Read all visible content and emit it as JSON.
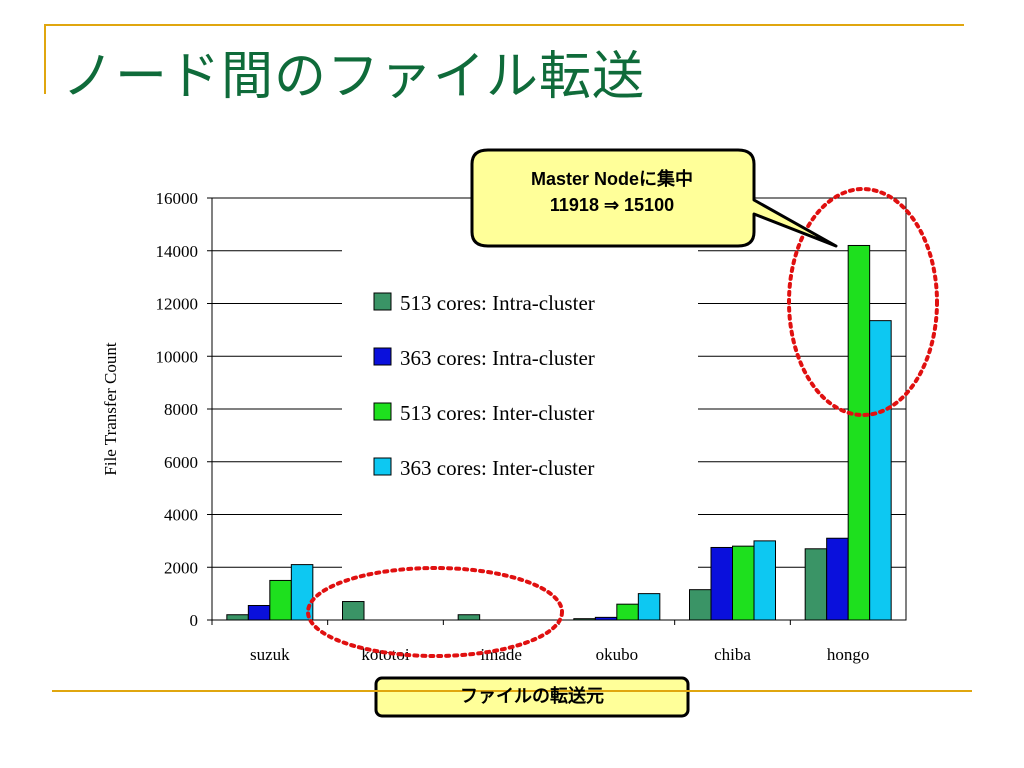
{
  "title": "ノード間のファイル転送",
  "callout": {
    "line1": "Master Nodeに集中",
    "line2": "11918 ⇒ 15100"
  },
  "source_label": "ファイルの転送元",
  "colors": {
    "title": "#0f6b3a",
    "rule": "#e0a60f",
    "callout_fill": "#ffff99",
    "highlight_ellipse": "#e01010"
  },
  "chart_data": {
    "type": "bar",
    "ylabel": "File Transfer Count",
    "xlabel": "",
    "ylim": [
      0,
      16000
    ],
    "yticks": [
      0,
      2000,
      4000,
      6000,
      8000,
      10000,
      12000,
      14000,
      16000
    ],
    "grid": true,
    "legend_position": "center",
    "categories": [
      "suzuk",
      "kototoi",
      "imade",
      "okubo",
      "chiba",
      "hongo"
    ],
    "series": [
      {
        "name": "513 cores: Intra-cluster",
        "color": "#3a9466",
        "values": [
          200,
          700,
          200,
          50,
          1150,
          2700
        ]
      },
      {
        "name": "363 cores: Intra-cluster",
        "color": "#0a10dc",
        "values": [
          550,
          0,
          0,
          100,
          2750,
          3100
        ]
      },
      {
        "name": "513 cores: Inter-cluster",
        "color": "#1ee01e",
        "values": [
          1500,
          0,
          0,
          600,
          2800,
          14200
        ]
      },
      {
        "name": "363 cores: Inter-cluster",
        "color": "#0dc8f2",
        "values": [
          2100,
          0,
          0,
          1000,
          3000,
          11350
        ]
      }
    ]
  }
}
